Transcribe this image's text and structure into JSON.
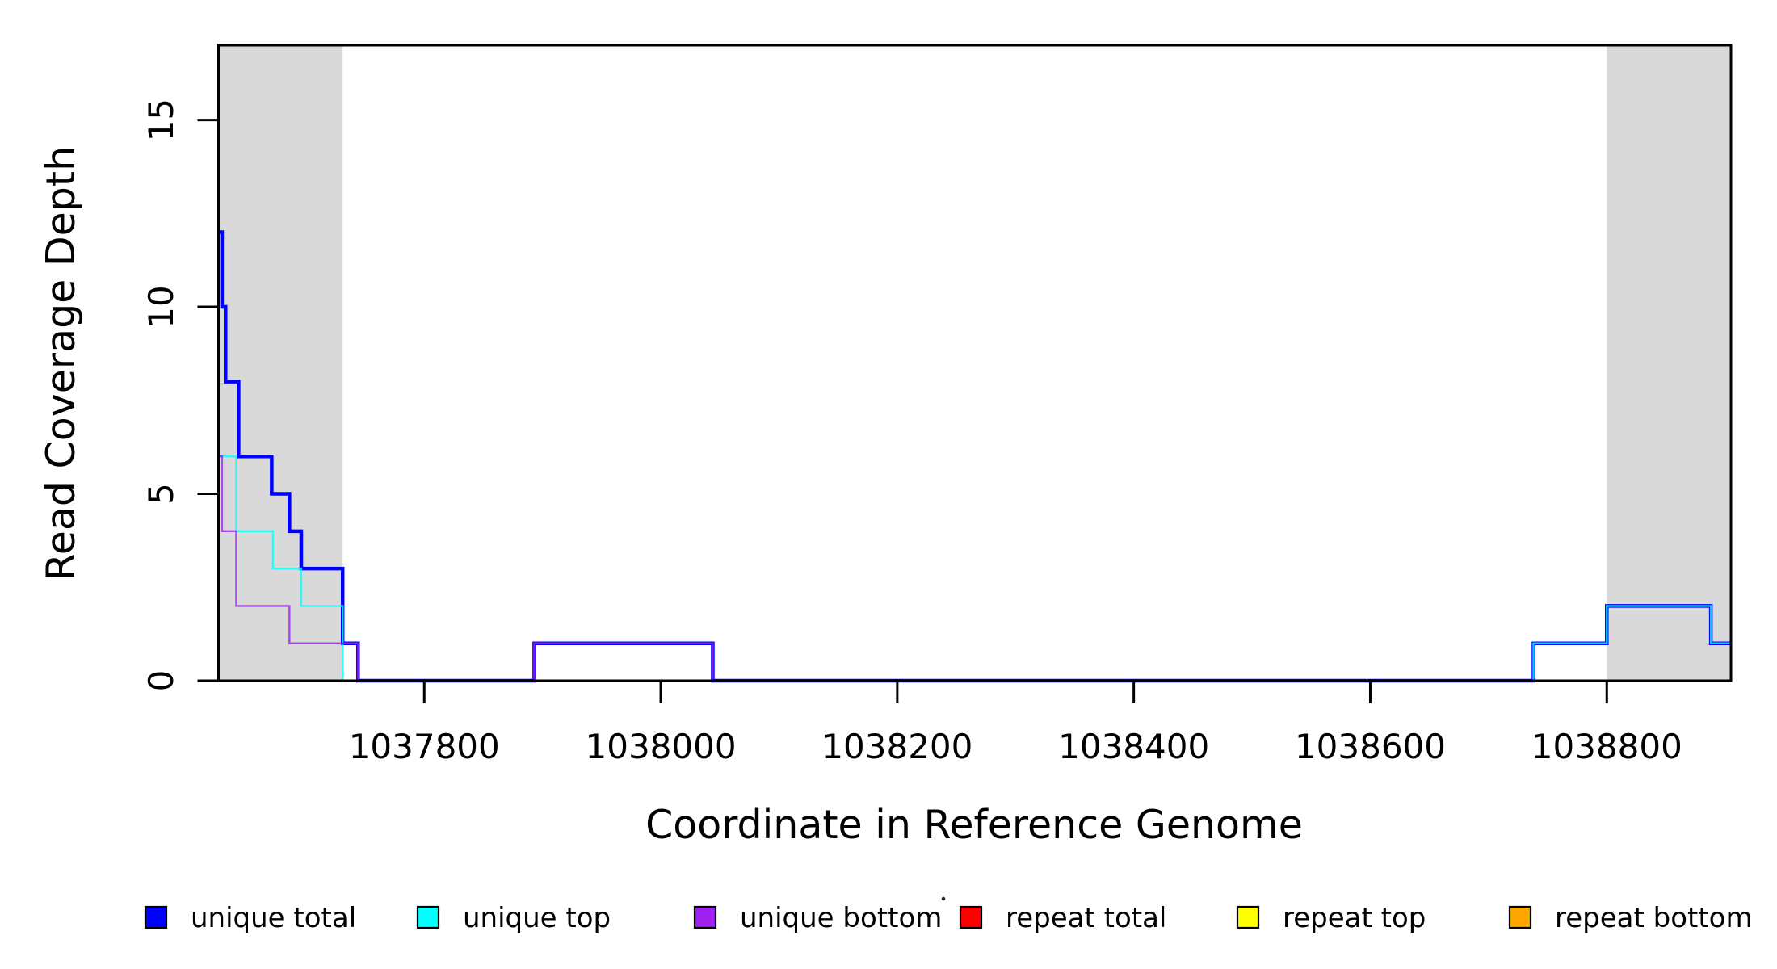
{
  "chart_data": {
    "type": "line",
    "style": "step",
    "xlabel": "Coordinate in Reference Genome",
    "ylabel": "Read Coverage Depth",
    "xlim": [
      1037626,
      1038905
    ],
    "ylim": [
      0,
      17
    ],
    "x_ticks": [
      "1037800",
      "1038000",
      "1038200",
      "1038400",
      "1038600",
      "1038800"
    ],
    "x_tick_values": [
      1037800,
      1038000,
      1038200,
      1038400,
      1038600,
      1038800
    ],
    "y_ticks": [
      "0",
      "5",
      "10",
      "15"
    ],
    "y_tick_values": [
      0,
      5,
      10,
      15
    ],
    "grid": false,
    "frame_color": "#000000",
    "shade_color": "#D9D9D9",
    "shaded_regions": [
      {
        "x0": 1037626,
        "x1": 1037731
      },
      {
        "x0": 1038800,
        "x1": 1038905
      }
    ],
    "series": [
      {
        "id": "unique-total",
        "name": "unique total",
        "color": "#0000FF",
        "width": 4.5,
        "opacity": 1,
        "segments": [
          [
            [
              1037626,
              12
            ],
            [
              1037629,
              10
            ],
            [
              1037632,
              8
            ],
            [
              1037643,
              6
            ],
            [
              1037671,
              5
            ],
            [
              1037686,
              4
            ],
            [
              1037696,
              3
            ],
            [
              1037731,
              1
            ],
            [
              1037744,
              0
            ],
            [
              1037893,
              1
            ],
            [
              1038044,
              0
            ],
            [
              1038738,
              1
            ],
            [
              1038800,
              2
            ],
            [
              1038888,
              1
            ],
            [
              1038905,
              1
            ]
          ]
        ]
      },
      {
        "id": "unique-top",
        "name": "unique top",
        "color": "#00FFFF",
        "width": 2.4,
        "opacity": 0.8,
        "segments": [
          [
            [
              1037626,
              6
            ],
            [
              1037641,
              4
            ],
            [
              1037672,
              3
            ],
            [
              1037696,
              2
            ],
            [
              1037731,
              0
            ],
            [
              1038738,
              1
            ],
            [
              1038800,
              2
            ],
            [
              1038888,
              1
            ],
            [
              1038905,
              1
            ]
          ]
        ]
      },
      {
        "id": "unique-bottom",
        "name": "unique bottom",
        "color": "#A020F0",
        "width": 2.4,
        "opacity": 0.8,
        "segments": [
          [
            [
              1037626,
              6
            ],
            [
              1037629,
              4
            ],
            [
              1037641,
              2
            ],
            [
              1037686,
              1
            ],
            [
              1037744,
              0
            ],
            [
              1037893,
              1
            ],
            [
              1038044,
              0
            ],
            [
              1038905,
              0
            ]
          ]
        ]
      },
      {
        "id": "repeat-total",
        "name": "repeat total",
        "color": "#FF0000",
        "width": 2.4,
        "opacity": 1,
        "segments": [
          [
            [
              1037626,
              0
            ],
            [
              1037731,
              0
            ]
          ],
          [
            [
              1038800,
              0
            ],
            [
              1038905,
              0
            ]
          ]
        ]
      },
      {
        "id": "repeat-top",
        "name": "repeat top",
        "color": "#FFFF00",
        "width": 2.4,
        "opacity": 1,
        "segments": [
          [
            [
              1037626,
              0
            ],
            [
              1037731,
              0
            ]
          ]
        ]
      },
      {
        "id": "repeat-bottom",
        "name": "repeat bottom",
        "color": "#FFA500",
        "width": 2.8,
        "opacity": 1,
        "segments": [
          [
            [
              1037626,
              0
            ],
            [
              1037731,
              0
            ]
          ]
        ]
      }
    ],
    "legend": {
      "position": "bottom",
      "items": [
        {
          "id": "unique-total",
          "label": "unique total",
          "color": "#0000FF"
        },
        {
          "id": "unique-top",
          "label": "unique top",
          "color": "#00FFFF"
        },
        {
          "id": "unique-bottom",
          "label": "unique bottom",
          "color": "#A020F0"
        },
        {
          "id": "repeat-total",
          "label": "repeat total",
          "color": "#FF0000"
        },
        {
          "id": "repeat-top",
          "label": "repeat top",
          "color": "#FFFF00"
        },
        {
          "id": "repeat-bottom",
          "label": "repeat bottom",
          "color": "#FFA500"
        }
      ]
    }
  }
}
